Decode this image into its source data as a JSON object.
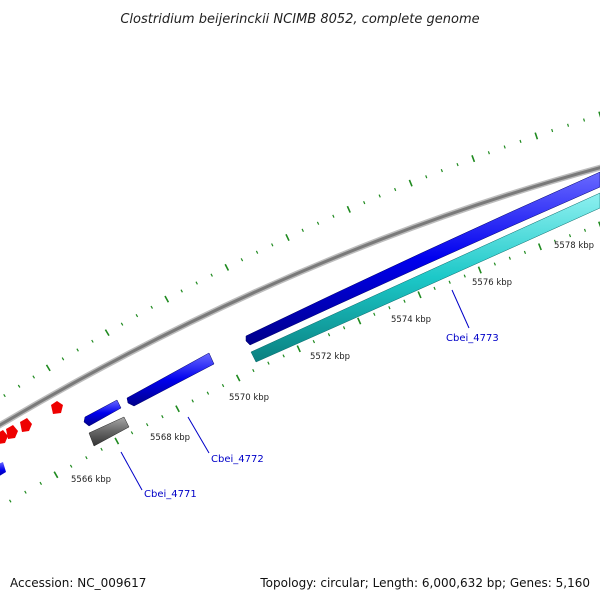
{
  "title": "Clostridium beijerinckii NCIMB 8052, complete genome",
  "footer": {
    "accession": "Accession: NC_009617",
    "topology": "Topology: circular; Length: 6,000,632 bp; Genes: 5,160"
  },
  "ruler": {
    "labels": [
      {
        "text": "5566 kbp"
      },
      {
        "text": "5568 kbp"
      },
      {
        "text": "5570 kbp"
      },
      {
        "text": "5572 kbp"
      },
      {
        "text": "5574 kbp"
      },
      {
        "text": "5576 kbp"
      },
      {
        "text": "5578 kbp"
      }
    ]
  },
  "genes": [
    {
      "locus": "Cbei_4771"
    },
    {
      "locus": "Cbei_4772"
    },
    {
      "locus": "Cbei_4773"
    }
  ],
  "colors": {
    "backbone": "#888888",
    "forward_gene": "#0000ee",
    "reverse_gene": "#00c8c8",
    "pseudo_gene": "#666666",
    "other_feature": "#ee0000",
    "ticks": "#1f8a1f",
    "label_line": "#0000c8"
  }
}
